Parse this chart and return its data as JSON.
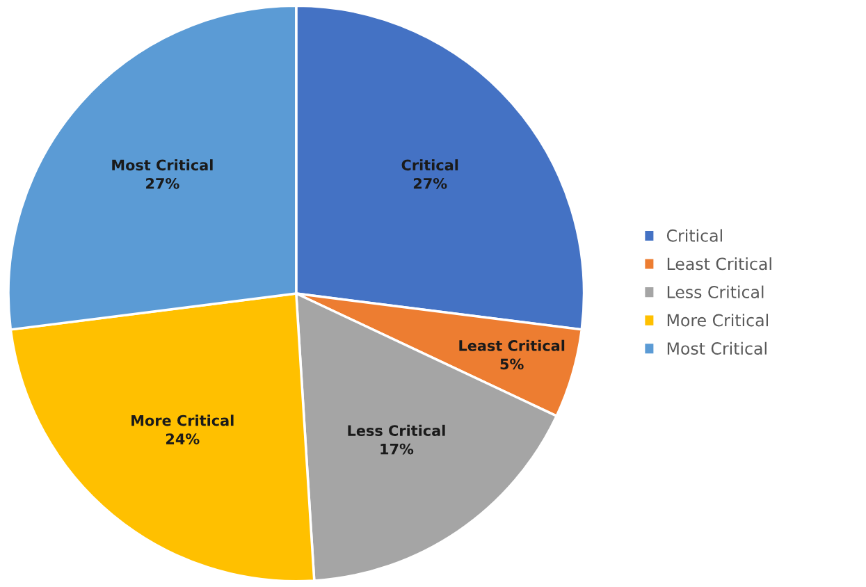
{
  "chart_data": {
    "type": "pie",
    "categories": [
      "Critical",
      "Least Critical",
      "Less Critical",
      "More Critical",
      "Most Critical"
    ],
    "values": [
      27,
      5,
      17,
      24,
      27
    ],
    "colors": [
      "#4472c4",
      "#ed7d31",
      "#a5a5a5",
      "#ffc000",
      "#5b9bd5"
    ],
    "value_labels": [
      "27%",
      "5%",
      "17%",
      "24%",
      "27%"
    ],
    "legend": "right"
  }
}
